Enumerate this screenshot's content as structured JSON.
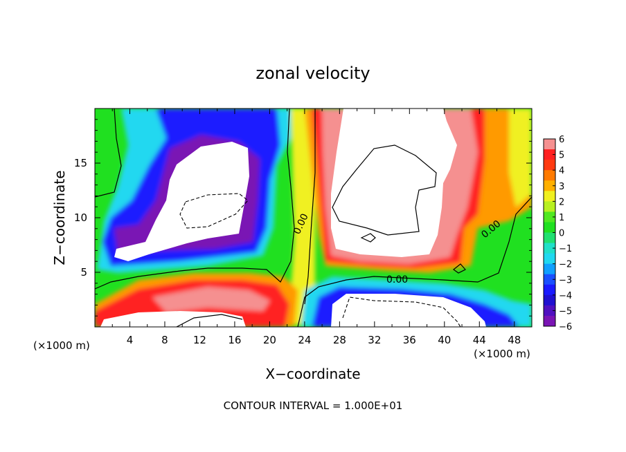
{
  "chart_data": {
    "type": "heatmap",
    "title": "zonal velocity",
    "xlabel": "X−coordinate",
    "ylabel": "Z−coordinate",
    "x_unit_left": "(×1000 m)",
    "x_unit_right": "(×1000 m)",
    "xlim": [
      0,
      50
    ],
    "ylim": [
      0,
      20
    ],
    "x_ticks": [
      "4",
      "8",
      "12",
      "16",
      "20",
      "24",
      "28",
      "32",
      "36",
      "40",
      "44",
      "48"
    ],
    "y_ticks": [
      "5",
      "10",
      "15"
    ],
    "colorbar": {
      "levels": [
        "6",
        "5",
        "4",
        "3",
        "2",
        "1",
        "0",
        "−1",
        "−2",
        "−3",
        "−4",
        "−5",
        "−6"
      ],
      "min": -6,
      "max": 6
    },
    "contour_labels": [
      "0.00",
      "0.00",
      "0.00"
    ],
    "footer": "CONTOUR INTERVAL = 1.000E+01",
    "colors": {
      "purple": "#7a14b4",
      "blue": "#1a1aff",
      "cyan": "#20d8f0",
      "green": "#20e020",
      "yellow": "#f0f020",
      "orange": "#ff9a00",
      "red": "#ff2020",
      "pink": "#f59090",
      "saturated": "#ffffff"
    }
  }
}
